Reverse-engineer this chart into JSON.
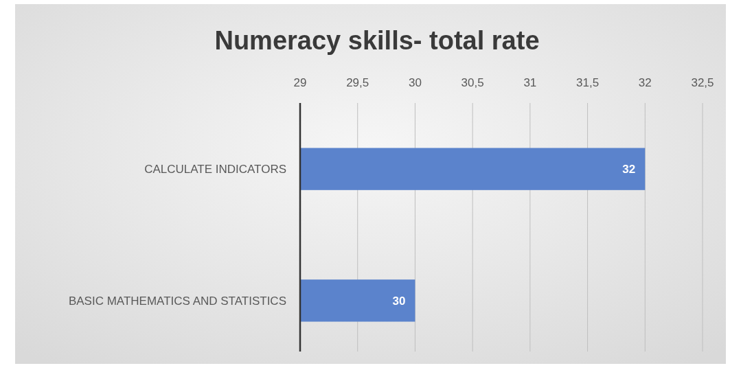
{
  "chart_data": {
    "type": "bar",
    "title": "Numeracy skills- total rate",
    "orientation": "horizontal",
    "categories": [
      "CALCULATE INDICATORS",
      "BASIC MATHEMATICS AND STATISTICS"
    ],
    "values": [
      32,
      30
    ],
    "color": "#5b83cc",
    "xlim": [
      29,
      32.5
    ],
    "xticks": [
      29,
      {
        "value": 29.5,
        "label": "29,5"
      },
      30,
      {
        "value": 30.5,
        "label": "30,5"
      },
      31,
      {
        "value": 31.5,
        "label": "31,5"
      },
      32,
      {
        "value": 32.5,
        "label": "32,5"
      }
    ],
    "grid": "x",
    "data_labels": true
  }
}
